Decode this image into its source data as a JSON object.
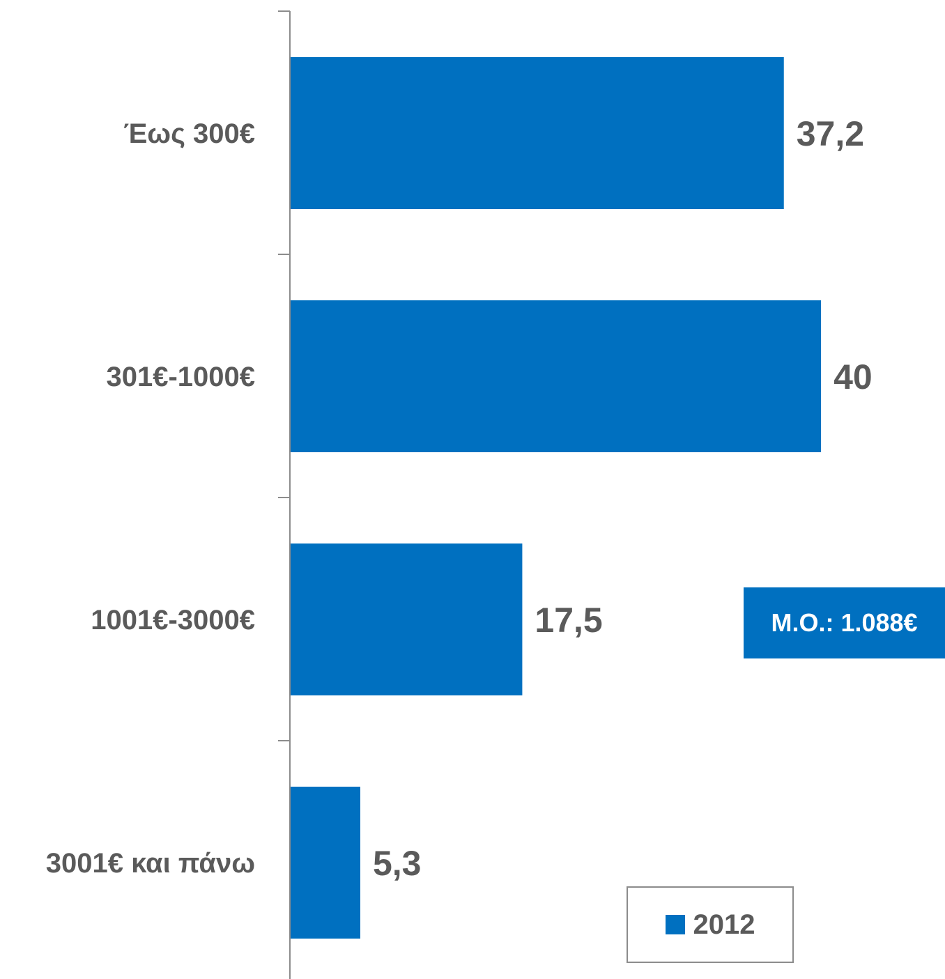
{
  "colors": {
    "bar": "#0070c0",
    "text": "#5a5a5a",
    "axis": "#8c8c8c"
  },
  "chart_data": {
    "type": "bar",
    "orientation": "horizontal",
    "categories": [
      "Έως 300€",
      "301€-1000€",
      "1001€-3000€",
      "3001€ και πάνω"
    ],
    "series": [
      {
        "name": "2012",
        "values": [
          37.2,
          40,
          17.5,
          5.3
        ]
      }
    ],
    "value_labels": [
      "37,2",
      "40",
      "17,5",
      "5,3"
    ],
    "xlim": [
      0,
      42
    ],
    "grid": false,
    "legend_placement": "bottom-right",
    "title": "",
    "xlabel": "",
    "ylabel": ""
  },
  "annotation": {
    "mean_label": "Μ.Ο.: 1.088€"
  },
  "legend": {
    "label": "2012"
  }
}
